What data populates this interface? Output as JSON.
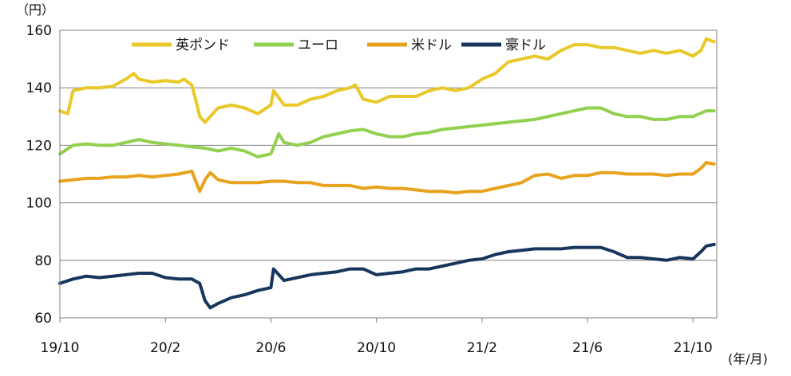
{
  "chart_data": {
    "type": "line",
    "y_unit_label": "（円）",
    "x_unit_label": "(年/月)",
    "ylim": [
      60,
      160
    ],
    "yticks": [
      60,
      80,
      100,
      120,
      140,
      160
    ],
    "x_tick_labels": [
      "19/10",
      "20/2",
      "20/6",
      "20/10",
      "21/2",
      "21/6",
      "21/10"
    ],
    "x_tick_positions": [
      0,
      4,
      8,
      12,
      16,
      20,
      24
    ],
    "xlim": [
      0,
      24.9
    ],
    "grid": "horizontal",
    "legend_position": "top-center",
    "series": [
      {
        "name": "英ポンド",
        "color": "#E9C829",
        "x": [
          0,
          0.3,
          0.5,
          1,
          1.5,
          2,
          2.5,
          2.8,
          3,
          3.5,
          4,
          4.5,
          4.7,
          5,
          5.2,
          5.3,
          5.5,
          6,
          6.5,
          7,
          7.5,
          8,
          8.1,
          8.5,
          9,
          9.5,
          10,
          10.5,
          11,
          11.2,
          11.5,
          12,
          12.5,
          13,
          13.5,
          14,
          14.5,
          15,
          15.5,
          16,
          16.5,
          17,
          17.5,
          18,
          18.5,
          19,
          19.5,
          20,
          20.5,
          21,
          21.5,
          22,
          22.5,
          23,
          23.5,
          24,
          24.3,
          24.5,
          24.8
        ],
        "values": [
          132,
          131,
          139,
          140,
          140,
          140.5,
          143,
          145,
          143,
          142,
          142.5,
          142,
          143,
          141,
          134,
          130,
          128,
          133,
          134,
          133,
          131,
          134,
          139,
          134,
          134,
          136,
          137,
          139,
          140,
          141,
          136,
          135,
          137,
          137,
          137,
          139,
          140,
          139,
          140,
          143,
          145,
          149,
          150,
          151,
          150,
          153,
          155,
          155,
          154,
          154,
          153,
          152,
          153,
          152,
          153,
          151,
          153,
          157,
          156
        ]
      },
      {
        "name": "ユーロ",
        "color": "#92D050",
        "x": [
          0,
          0.5,
          1,
          1.5,
          2,
          2.5,
          3,
          3.5,
          4,
          4.5,
          5,
          5.5,
          6,
          6.5,
          7,
          7.5,
          8,
          8.3,
          8.5,
          9,
          9.5,
          10,
          10.5,
          11,
          11.5,
          12,
          12.5,
          13,
          13.5,
          14,
          14.5,
          15,
          15.5,
          16,
          16.5,
          17,
          17.5,
          18,
          18.5,
          19,
          19.5,
          20,
          20.5,
          21,
          21.5,
          22,
          22.5,
          23,
          23.5,
          24,
          24.5,
          24.8
        ],
        "values": [
          117,
          120,
          120.5,
          120,
          120,
          121,
          122,
          121,
          120.5,
          120,
          119.5,
          119,
          118,
          119,
          118,
          116,
          117,
          124,
          121,
          120,
          121,
          123,
          124,
          125,
          125.5,
          124,
          123,
          123,
          124,
          124.5,
          125.5,
          126,
          126.5,
          127,
          127.5,
          128,
          128.5,
          129,
          130,
          131,
          132,
          133,
          133,
          131,
          130,
          130,
          129,
          129,
          130,
          130,
          132,
          132
        ]
      },
      {
        "name": "米ドル",
        "color": "#E8A21E",
        "x": [
          0,
          0.5,
          1,
          1.5,
          2,
          2.5,
          3,
          3.5,
          4,
          4.5,
          5,
          5.3,
          5.5,
          5.7,
          6,
          6.5,
          7,
          7.5,
          8,
          8.5,
          9,
          9.5,
          10,
          10.5,
          11,
          11.5,
          12,
          12.5,
          13,
          13.5,
          14,
          14.5,
          15,
          15.5,
          16,
          16.5,
          17,
          17.5,
          18,
          18.5,
          19,
          19.5,
          20,
          20.5,
          21,
          21.5,
          22,
          22.5,
          23,
          23.5,
          24,
          24.3,
          24.5,
          24.8
        ],
        "values": [
          107.5,
          108,
          108.5,
          108.5,
          109,
          109,
          109.5,
          109,
          109.5,
          110,
          111,
          104,
          108,
          110.5,
          108,
          107,
          107,
          107,
          107.5,
          107.5,
          107,
          107,
          106,
          106,
          106,
          105,
          105.5,
          105,
          105,
          104.5,
          104,
          104,
          103.5,
          104,
          104,
          105,
          106,
          107,
          109.5,
          110,
          108.5,
          109.5,
          109.5,
          110.5,
          110.5,
          110,
          110,
          110,
          109.5,
          110,
          110,
          112,
          114,
          113.5
        ]
      },
      {
        "name": "豪ドル",
        "color": "#17365D",
        "x": [
          0,
          0.5,
          1,
          1.5,
          2,
          2.5,
          3,
          3.5,
          4,
          4.5,
          5,
          5.3,
          5.5,
          5.7,
          6,
          6.5,
          7,
          7.5,
          8,
          8.1,
          8.5,
          9,
          9.5,
          10,
          10.5,
          11,
          11.5,
          12,
          12.5,
          13,
          13.5,
          14,
          14.5,
          15,
          15.5,
          16,
          16.5,
          17,
          17.5,
          18,
          18.5,
          19,
          19.5,
          20,
          20.5,
          21,
          21.5,
          22,
          22.5,
          23,
          23.5,
          24,
          24.3,
          24.5,
          24.8
        ],
        "values": [
          72,
          73.5,
          74.5,
          74,
          74.5,
          75,
          75.5,
          75.5,
          74,
          73.5,
          73.5,
          72,
          66,
          63.5,
          65,
          67,
          68,
          69.5,
          70.5,
          77,
          73,
          74,
          75,
          75.5,
          76,
          77,
          77,
          75,
          75.5,
          76,
          77,
          77,
          78,
          79,
          80,
          80.5,
          82,
          83,
          83.5,
          84,
          84,
          84,
          84.5,
          84.5,
          84.5,
          83,
          81,
          81,
          80.5,
          80,
          81,
          80.5,
          83,
          85,
          85.5
        ]
      }
    ]
  }
}
